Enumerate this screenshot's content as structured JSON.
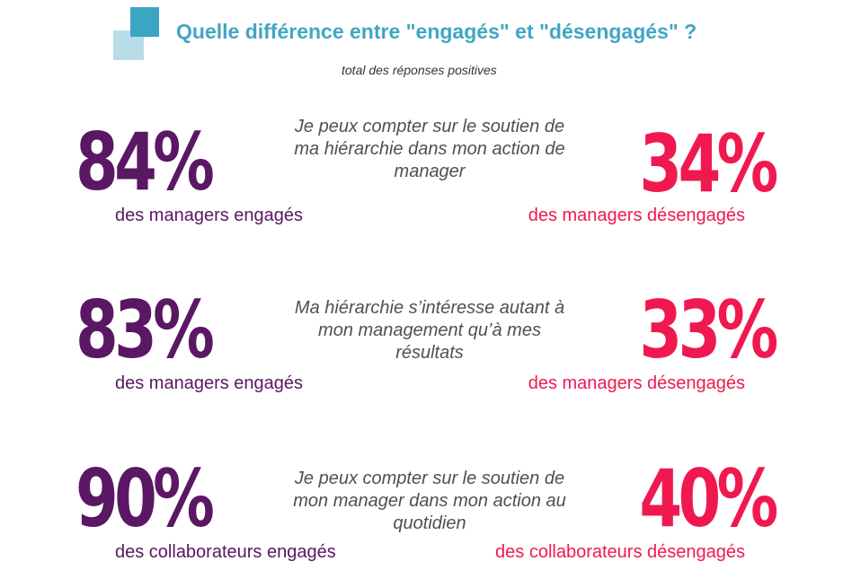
{
  "header": {
    "title": "Quelle différence entre \"engagés\" et \"désengagés\" ?",
    "subtitle": "total des réponses positives"
  },
  "rows": [
    {
      "engaged_pct": "84%",
      "engaged_label": "des managers engagés",
      "statement": "Je peux compter sur le soutien de ma hiérarchie dans mon action de manager",
      "disengaged_pct": "34%",
      "disengaged_label": "des managers désengagés"
    },
    {
      "engaged_pct": "83%",
      "engaged_label": "des managers engagés",
      "statement": "Ma hiérarchie s’intéresse autant à mon management qu’à mes résultats",
      "disengaged_pct": "33%",
      "disengaged_label": "des managers désengagés"
    },
    {
      "engaged_pct": "90%",
      "engaged_label": "des collaborateurs engagés",
      "statement": "Je peux compter sur le soutien de mon manager dans mon action au quotidien",
      "disengaged_pct": "40%",
      "disengaged_label": "des collaborateurs désengagés"
    }
  ],
  "colors": {
    "title": "#41a6c3",
    "engaged": "#5a1763",
    "disengaged": "#f0194f",
    "logo_dark": "#3aa6c2",
    "logo_light": "#b8dde8"
  }
}
